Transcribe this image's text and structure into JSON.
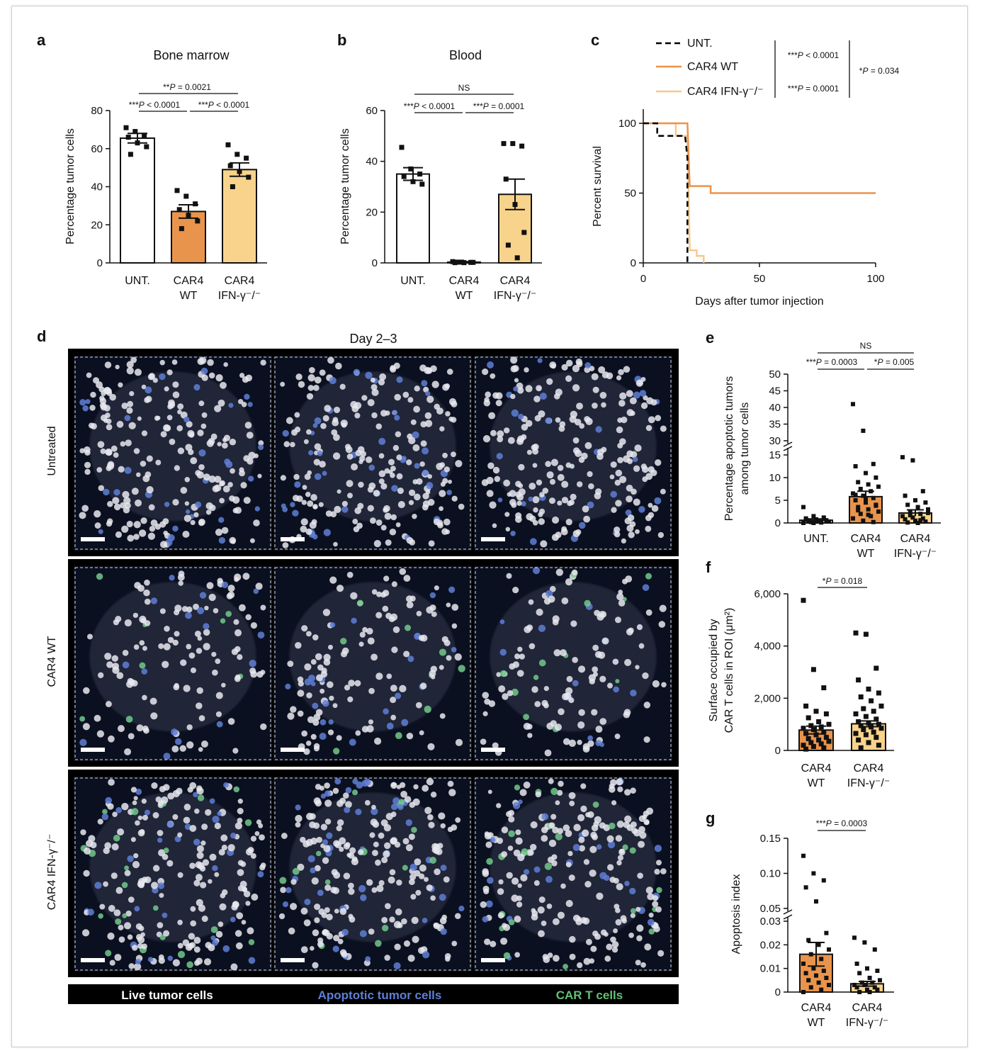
{
  "colors": {
    "untreated": "#ffffff",
    "car4_wt": "#e9944c",
    "car4_ifng_ko": "#f8d38b",
    "survival_untreated": "#000000",
    "survival_wt": "#e9944c",
    "survival_ko": "#f7c98d",
    "caption_live": "#ffffff",
    "caption_apoptotic": "#5f7fd6",
    "caption_cart": "#63c174"
  },
  "panel_a": {
    "letter": "a",
    "chart_data": {
      "type": "bar",
      "title": "Bone marrow",
      "ylabel": "Percentage tumor cells",
      "ylim": [
        0,
        80
      ],
      "yticks": [
        "0",
        "20",
        "40",
        "60",
        "80"
      ],
      "categories": [
        [
          "UNT."
        ],
        [
          "CAR4",
          "WT"
        ],
        [
          "CAR4",
          "IFN-γ⁻/⁻"
        ]
      ],
      "values": [
        65.5,
        27,
        49
      ],
      "sem": [
        2.5,
        3.5,
        3.5
      ],
      "points": [
        [
          71,
          69,
          67,
          66,
          63,
          61,
          57
        ],
        [
          38,
          35,
          31,
          28,
          25,
          22,
          18
        ],
        [
          62,
          57,
          55,
          51,
          48,
          45,
          40
        ]
      ],
      "significance": [
        {
          "label": "**P = 0.0021",
          "from": 0,
          "to": 2
        },
        {
          "label": "***P < 0.0001",
          "from": 0,
          "to": 1
        },
        {
          "label": "***P < 0.0001",
          "from": 1,
          "to": 2
        }
      ]
    }
  },
  "panel_b": {
    "letter": "b",
    "chart_data": {
      "type": "bar",
      "title": "Blood",
      "ylabel": "Percentage tumor cells",
      "ylim": [
        0,
        60
      ],
      "yticks": [
        "0",
        "20",
        "40",
        "60"
      ],
      "categories": [
        [
          "UNT."
        ],
        [
          "CAR4",
          "WT"
        ],
        [
          "CAR4",
          "IFN-γ⁻/⁻"
        ]
      ],
      "values": [
        35,
        0.3,
        27
      ],
      "sem": [
        2.5,
        0.2,
        6
      ],
      "points": [
        [
          45.5,
          37,
          35,
          34,
          32,
          31
        ],
        [
          0.5,
          0.3,
          0.2,
          0.1,
          0.1,
          0.2,
          0.3
        ],
        [
          47,
          47,
          46,
          33,
          23,
          12,
          7,
          2
        ]
      ],
      "significance": [
        {
          "label": "NS",
          "from": 0,
          "to": 2
        },
        {
          "label": "***P < 0.0001",
          "from": 0,
          "to": 1
        },
        {
          "label": "***P = 0.0001",
          "from": 1,
          "to": 2
        }
      ]
    }
  },
  "panel_c": {
    "letter": "c",
    "chart_data": {
      "type": "line",
      "xlabel": "Days after tumor injection",
      "ylabel": "Percent survival",
      "xlim": [
        0,
        100
      ],
      "ylim": [
        0,
        100
      ],
      "xticks": [
        "0",
        "50",
        "100"
      ],
      "yticks": [
        "0",
        "50",
        "100"
      ],
      "legend": [
        "UNT.",
        "CAR4 WT",
        "CAR4 IFN-γ⁻/⁻"
      ],
      "series": [
        {
          "name": "UNT.",
          "style": "dashed",
          "x": [
            0,
            6,
            6,
            18,
            19,
            19
          ],
          "y": [
            100,
            100,
            91,
            91,
            75,
            0
          ]
        },
        {
          "name": "CAR4 WT",
          "style": "solid",
          "x": [
            0,
            19,
            20,
            29,
            29,
            100
          ],
          "y": [
            100,
            100,
            55,
            55,
            50,
            50
          ]
        },
        {
          "name": "CAR4 IFN-γ⁻/⁻",
          "style": "solid",
          "x": [
            0,
            14,
            14,
            19,
            20,
            23,
            23,
            26,
            26
          ],
          "y": [
            100,
            100,
            91,
            91,
            9,
            9,
            5,
            5,
            0
          ]
        }
      ],
      "significance": [
        {
          "label": "***P < 0.0001"
        },
        {
          "label": "***P = 0.0001"
        },
        {
          "label": "*P = 0.034"
        }
      ]
    }
  },
  "panel_d": {
    "letter": "d",
    "title": "Day 2–3",
    "rows": [
      "Untreated",
      "CAR4 WT",
      "CAR4 IFN-γ⁻/⁻"
    ],
    "captions": [
      "Live tumor cells",
      "Apoptotic tumor cells",
      "CAR T cells"
    ]
  },
  "panel_e": {
    "letter": "e",
    "chart_data": {
      "type": "bar",
      "ylabel_lines": [
        "Percentage apoptotic tumors",
        "among tumor cells"
      ],
      "yticks_low": [
        "0",
        "5",
        "10",
        "15"
      ],
      "yticks_high": [
        "30",
        "35",
        "40",
        "45",
        "50"
      ],
      "categories": [
        [
          "UNT."
        ],
        [
          "CAR4",
          "WT"
        ],
        [
          "CAR4",
          "IFN-γ⁻/⁻"
        ]
      ],
      "values": [
        0.6,
        5.8,
        2.2
      ],
      "sem": [
        0.3,
        1.2,
        0.7
      ],
      "points": [
        [
          3.5,
          1.5,
          1.2,
          1,
          0.8,
          0.6,
          0.5,
          0.4,
          0.3,
          0.2,
          0.1,
          0,
          0,
          0.9,
          0.7,
          0.3
        ],
        [
          41,
          33,
          13,
          12.5,
          11,
          10,
          9,
          8.5,
          8,
          7.5,
          7,
          6.5,
          6,
          5.5,
          5,
          4.5,
          4,
          3.5,
          3,
          2.5,
          2,
          1.5,
          1,
          0.5,
          0.2,
          6.2,
          5.2,
          3.8,
          2.8,
          1.8
        ],
        [
          14.5,
          13.8,
          7,
          6,
          5,
          4.5,
          4,
          3.5,
          3,
          2.5,
          2,
          1.5,
          1.2,
          1,
          0.8,
          0.5,
          0.3,
          0.1,
          0,
          2.2,
          1.7,
          0.6
        ]
      ],
      "significance": [
        {
          "label": "NS",
          "from": 0,
          "to": 2
        },
        {
          "label": "***P = 0.0003",
          "from": 0,
          "to": 1
        },
        {
          "label": "*P = 0.005",
          "from": 1,
          "to": 2
        }
      ]
    }
  },
  "panel_f": {
    "letter": "f",
    "chart_data": {
      "type": "bar",
      "ylabel_lines": [
        "Surface occupied by",
        "CAR T cells in ROI (μm²)"
      ],
      "ylim": [
        0,
        6000
      ],
      "yticks": [
        "0",
        "2,000",
        "4,000",
        "6,000"
      ],
      "categories": [
        [
          "CAR4",
          "WT"
        ],
        [
          "CAR4",
          "IFN-γ⁻/⁻"
        ]
      ],
      "values": [
        780,
        1020
      ],
      "sem": [
        150,
        110
      ],
      "points": [
        [
          5750,
          3100,
          2400,
          1700,
          1500,
          1400,
          1250,
          1100,
          1000,
          950,
          900,
          850,
          800,
          700,
          650,
          600,
          500,
          450,
          400,
          350,
          300,
          250,
          200,
          150,
          100,
          50
        ],
        [
          4500,
          4450,
          3150,
          2700,
          2350,
          2200,
          2050,
          1900,
          1700,
          1600,
          1500,
          1400,
          1300,
          1200,
          1100,
          1050,
          1000,
          950,
          900,
          850,
          800,
          700,
          650,
          600,
          500,
          400,
          300,
          200,
          100
        ]
      ],
      "significance": [
        {
          "label": "*P = 0.018",
          "from": 0,
          "to": 1
        }
      ]
    }
  },
  "panel_g": {
    "letter": "g",
    "chart_data": {
      "type": "bar",
      "ylabel": "Apoptosis index",
      "yticks_low": [
        "0",
        "0.01",
        "0.02",
        "0.03"
      ],
      "yticks_high": [
        "0.05",
        "0.10",
        "0.15"
      ],
      "categories": [
        [
          "CAR4",
          "WT"
        ],
        [
          "CAR4",
          "IFN-γ⁻/⁻"
        ]
      ],
      "values": [
        0.016,
        0.0035
      ],
      "sem": [
        0.005,
        0.001
      ],
      "points": [
        [
          0.125,
          0.1,
          0.09,
          0.08,
          0.06,
          0.025,
          0.022,
          0.02,
          0.018,
          0.016,
          0.014,
          0.012,
          0.01,
          0.009,
          0.008,
          0.007,
          0.006,
          0.005,
          0.004,
          0.003,
          0.002,
          0.001,
          0
        ],
        [
          0.023,
          0.021,
          0.018,
          0.012,
          0.01,
          0.009,
          0.008,
          0.006,
          0.005,
          0.004,
          0.004,
          0.003,
          0.003,
          0.002,
          0.002,
          0.001,
          0.001,
          0,
          0
        ]
      ],
      "significance": [
        {
          "label": "***P = 0.0003",
          "from": 0,
          "to": 1
        }
      ]
    }
  }
}
